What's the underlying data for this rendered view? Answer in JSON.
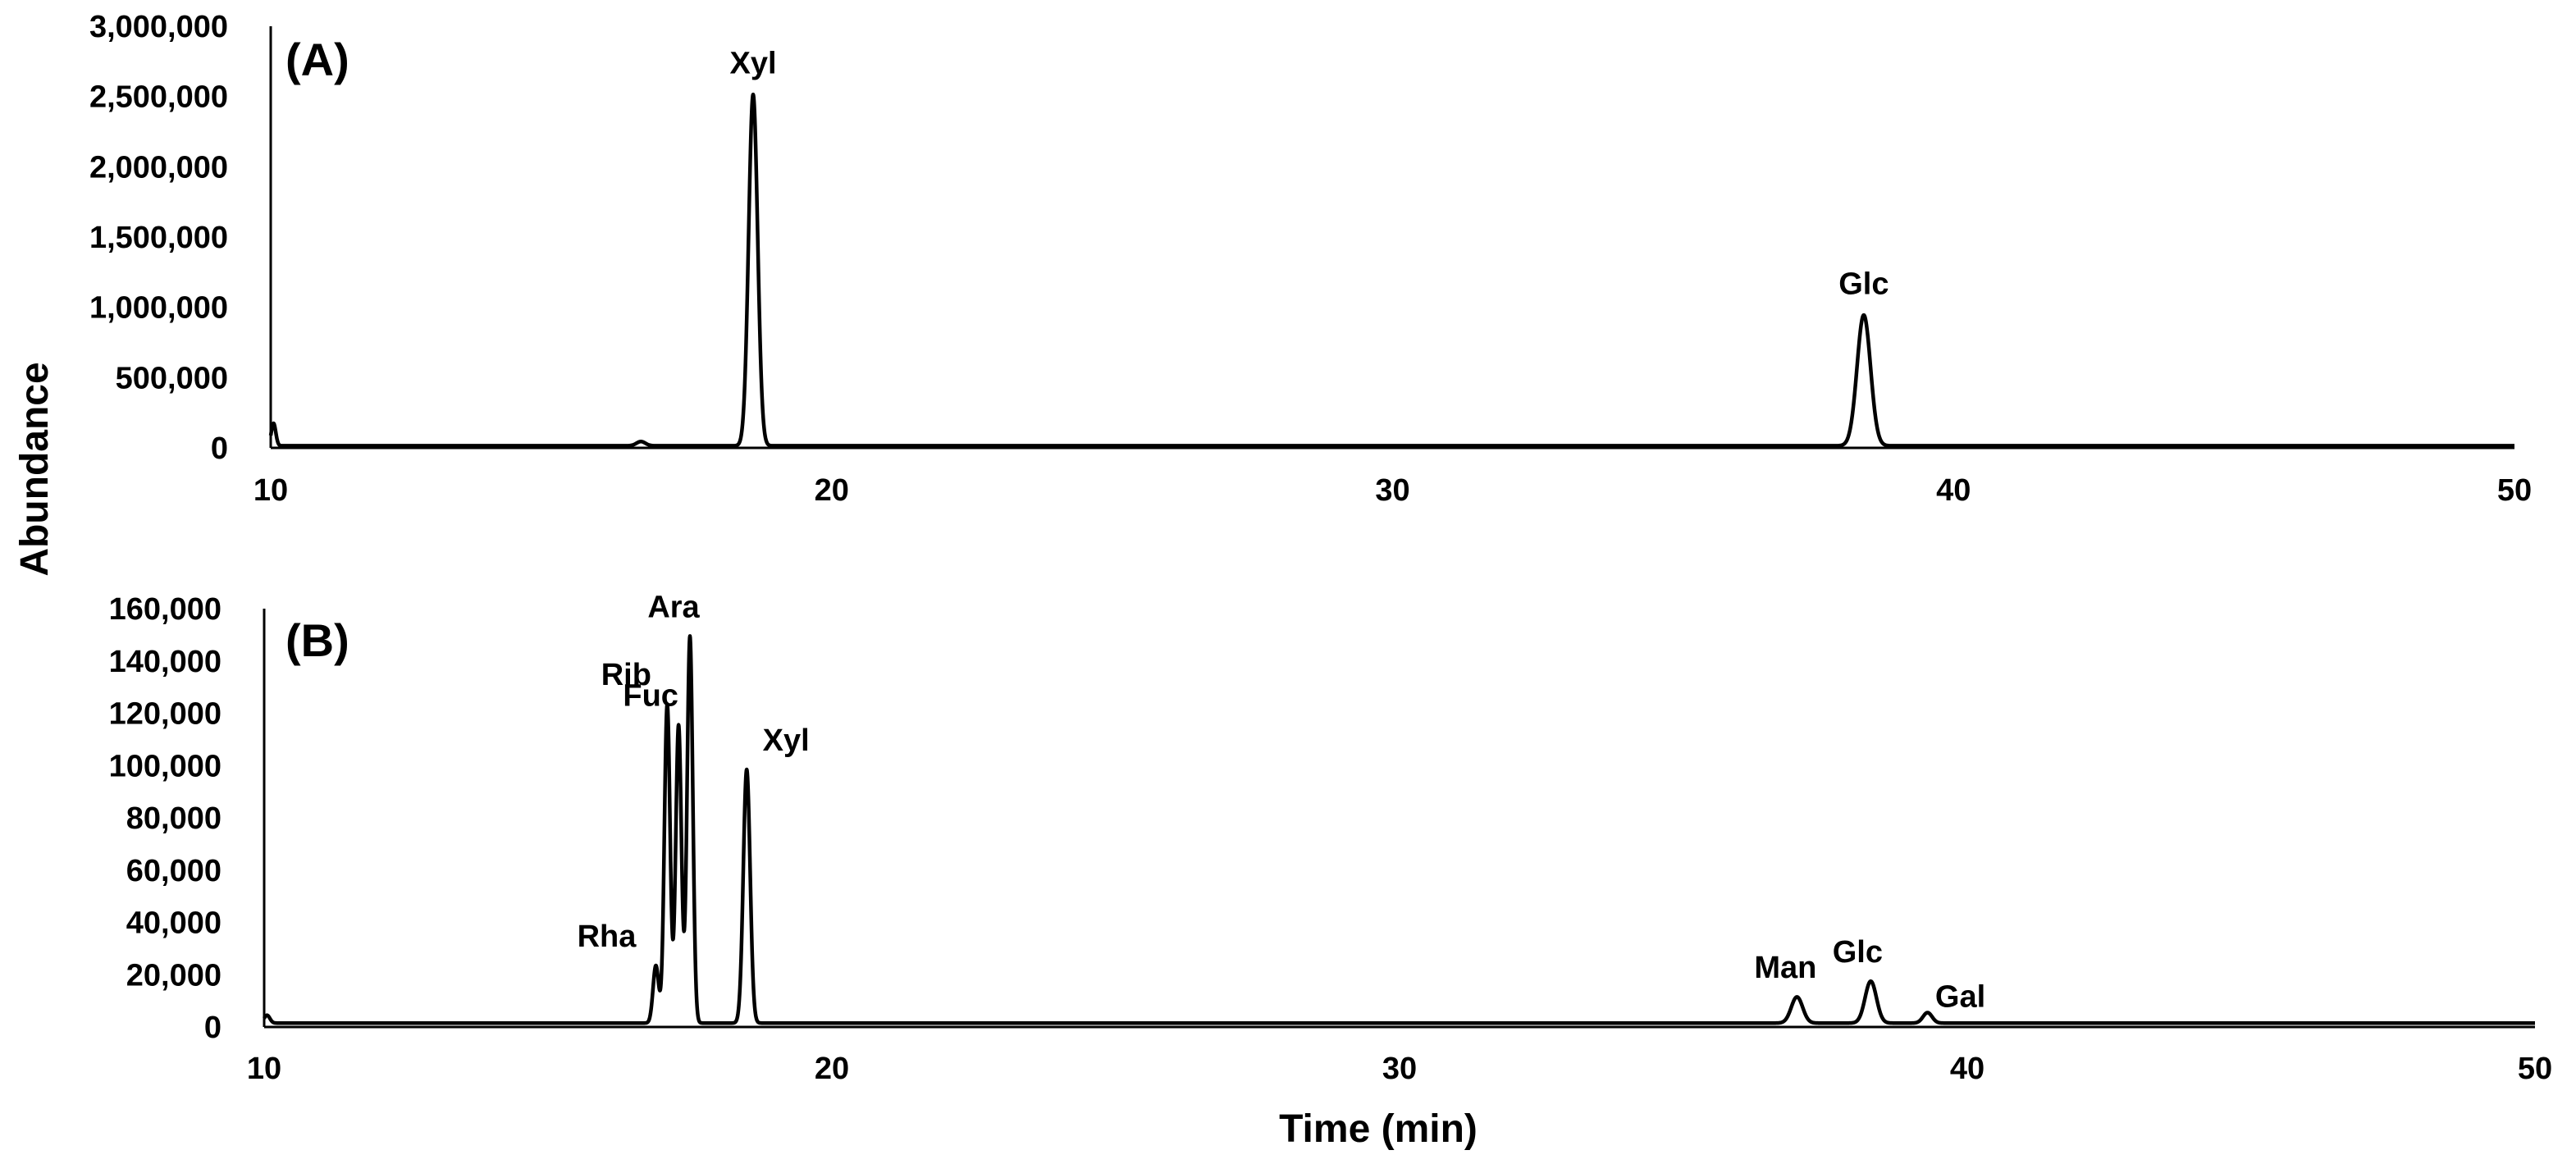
{
  "figure": {
    "ylabel": "Abundance",
    "xlabel": "Time (min)"
  },
  "chart_data": [
    {
      "type": "line",
      "panel_label": "(A)",
      "xlim": [
        10,
        50
      ],
      "ylim": [
        0,
        3000000
      ],
      "xticks": [
        "10",
        "20",
        "30",
        "40",
        "50"
      ],
      "yticks": [
        "0",
        "500,000",
        "1,000,000",
        "1,500,000",
        "2,000,000",
        "2,500,000",
        "3,000,000"
      ],
      "baseline": 15000,
      "spikes": [
        {
          "x": 10.05,
          "y": 160000,
          "w": 0.04
        },
        {
          "x": 16.6,
          "y": 30000,
          "w": 0.08
        }
      ],
      "peaks": [
        {
          "label": "Xyl",
          "x": 18.6,
          "y": 2500000,
          "w": 0.08
        },
        {
          "label": "Glc",
          "x": 38.4,
          "y": 930000,
          "w": 0.12
        }
      ]
    },
    {
      "type": "line",
      "panel_label": "(B)",
      "xlim": [
        10,
        50
      ],
      "ylim": [
        0,
        160000
      ],
      "xticks": [
        "10",
        "20",
        "30",
        "40",
        "50"
      ],
      "yticks": [
        "0",
        "20,000",
        "40,000",
        "60,000",
        "80,000",
        "100,000",
        "120,000",
        "140,000",
        "160,000"
      ],
      "baseline": 1500,
      "spikes": [
        {
          "x": 10.05,
          "y": 3000,
          "w": 0.05
        }
      ],
      "peaks": [
        {
          "label": "Rha",
          "x": 16.9,
          "y": 22000,
          "w": 0.05
        },
        {
          "label": "Rib",
          "x": 17.1,
          "y": 122000,
          "w": 0.05
        },
        {
          "label": "Fuc",
          "x": 17.3,
          "y": 114000,
          "w": 0.05
        },
        {
          "label": "Ara",
          "x": 17.5,
          "y": 148000,
          "w": 0.05
        },
        {
          "label": "Xyl",
          "x": 18.5,
          "y": 97000,
          "w": 0.06
        },
        {
          "label": "Man",
          "x": 37.0,
          "y": 10000,
          "w": 0.1
        },
        {
          "label": "Glc",
          "x": 38.3,
          "y": 16000,
          "w": 0.1
        },
        {
          "label": "Gal",
          "x": 39.3,
          "y": 4000,
          "w": 0.08
        }
      ]
    }
  ]
}
